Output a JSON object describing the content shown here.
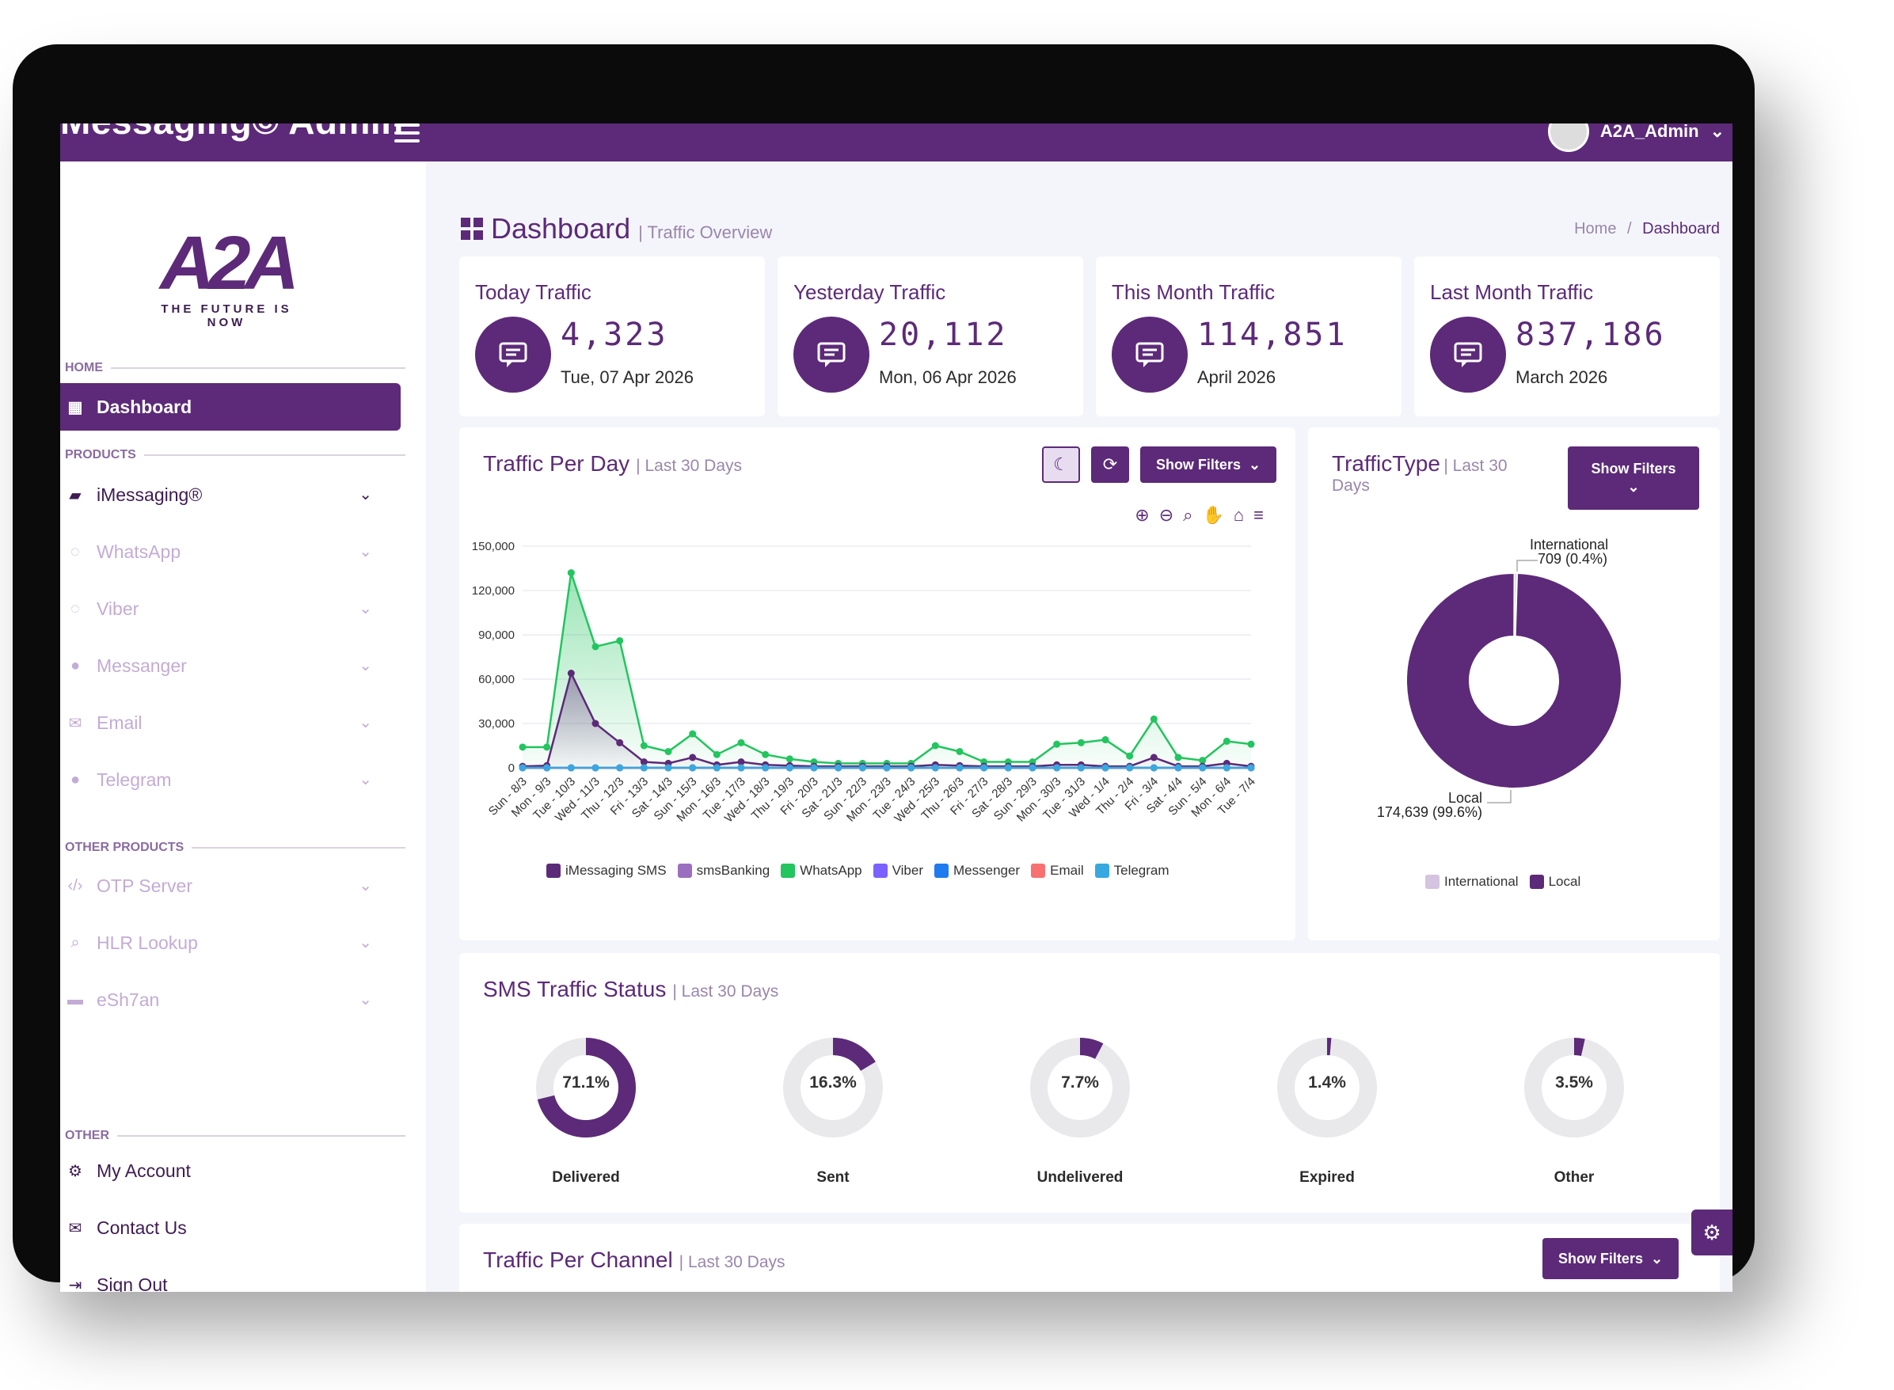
{
  "topbar": {
    "brand": "Messaging© Admin",
    "user": "A2A_Admin"
  },
  "logo": {
    "mark": "A2A",
    "tagline": "THE FUTURE IS NOW"
  },
  "sidebar": {
    "home_label": "HOME",
    "dashboard": "Dashboard",
    "products_label": "PRODUCTS",
    "products": [
      {
        "label": "iMessaging®",
        "icon": "chat-icon"
      },
      {
        "label": "WhatsApp",
        "icon": "whatsapp-icon"
      },
      {
        "label": "Viber",
        "icon": "viber-icon"
      },
      {
        "label": "Messanger",
        "icon": "messenger-icon"
      },
      {
        "label": "Email",
        "icon": "envelope-icon"
      },
      {
        "label": "Telegram",
        "icon": "telegram-icon"
      }
    ],
    "other_products_label": "OTHER PRODUCTS",
    "other_products": [
      {
        "label": "OTP Server",
        "icon": "code-icon"
      },
      {
        "label": "HLR Lookup",
        "icon": "search-icon"
      },
      {
        "label": "eSh7an",
        "icon": "card-icon"
      }
    ],
    "other_label": "OTHER",
    "other": [
      {
        "label": "My Account",
        "icon": "gear-icon"
      },
      {
        "label": "Contact Us",
        "icon": "envelope-icon"
      },
      {
        "label": "Sign Out",
        "icon": "logout-icon"
      }
    ]
  },
  "page": {
    "title": "Dashboard",
    "subtitle": "| Traffic Overview",
    "breadcrumb_home": "Home",
    "breadcrumb_sep": "/",
    "breadcrumb_current": "Dashboard"
  },
  "stats": [
    {
      "title": "Today Traffic",
      "value": "4,323",
      "sub": "Tue, 07 Apr 2026"
    },
    {
      "title": "Yesterday Traffic",
      "value": "20,112",
      "sub": "Mon, 06 Apr 2026"
    },
    {
      "title": "This Month Traffic",
      "value": "114,851",
      "sub": "April 2026"
    },
    {
      "title": "Last Month Traffic",
      "value": "837,186",
      "sub": "March 2026"
    }
  ],
  "traffic_per_day": {
    "title": "Traffic Per Day",
    "subtitle": "| Last 30 Days",
    "filters_button": "Show Filters"
  },
  "traffic_type": {
    "title": "TrafficType",
    "subtitle": "| Last 30 Days",
    "filters_button": "Show Filters",
    "label_international": "International",
    "value_international": "709 (0.4%)",
    "label_local": "Local",
    "value_local": "174,639 (99.6%)"
  },
  "sms_status": {
    "title": "SMS Traffic Status",
    "subtitle": "| Last 30 Days",
    "items": [
      {
        "label": "Delivered",
        "pct_text": "71.1%",
        "pct": 71.1
      },
      {
        "label": "Sent",
        "pct_text": "16.3%",
        "pct": 16.3
      },
      {
        "label": "Undelivered",
        "pct_text": "7.7%",
        "pct": 7.7
      },
      {
        "label": "Expired",
        "pct_text": "1.4%",
        "pct": 1.4
      },
      {
        "label": "Other",
        "pct_text": "3.5%",
        "pct": 3.5
      }
    ]
  },
  "traffic_per_channel": {
    "title": "Traffic Per Channel",
    "subtitle": "| Last 30 Days",
    "filters_button": "Show Filters"
  },
  "chart_data": [
    {
      "type": "area",
      "title": "",
      "xlabel": "",
      "ylabel": "",
      "ylim": [
        0,
        150000
      ],
      "yticks": [
        "150,000",
        "120,000",
        "90,000",
        "60,000",
        "30,000",
        "0"
      ],
      "categories": [
        "Sun - 8/3",
        "Mon - 9/3",
        "Tue - 10/3",
        "Wed - 11/3",
        "Thu - 12/3",
        "Fri - 13/3",
        "Sat - 14/3",
        "Sun - 15/3",
        "Mon - 16/3",
        "Tue - 17/3",
        "Wed - 18/3",
        "Thu - 19/3",
        "Fri - 20/3",
        "Sat - 21/3",
        "Sun - 22/3",
        "Mon - 23/3",
        "Tue - 24/3",
        "Wed - 25/3",
        "Thu - 26/3",
        "Fri - 27/3",
        "Sat - 28/3",
        "Sun - 29/3",
        "Mon - 30/3",
        "Tue - 31/3",
        "Wed - 1/4",
        "Thu - 2/4",
        "Fri - 3/4",
        "Sat - 4/4",
        "Sun - 5/4",
        "Mon - 6/4",
        "Tue - 7/4"
      ],
      "series": [
        {
          "name": "iMessaging SMS",
          "color": "#5c2a78",
          "values": [
            1000,
            1500,
            64000,
            30000,
            17000,
            4000,
            3000,
            7000,
            2000,
            4000,
            2000,
            1500,
            1000,
            1000,
            1000,
            1000,
            1000,
            2000,
            1500,
            1000,
            1000,
            1000,
            2000,
            2000,
            1000,
            1000,
            7000,
            1000,
            1000,
            3000,
            1000
          ]
        },
        {
          "name": "smsBanking",
          "color": "#9b6fc0",
          "values": [
            0,
            0,
            0,
            0,
            0,
            0,
            0,
            0,
            0,
            0,
            0,
            0,
            0,
            0,
            0,
            0,
            0,
            0,
            0,
            0,
            0,
            0,
            0,
            0,
            0,
            0,
            0,
            0,
            0,
            0,
            0
          ]
        },
        {
          "name": "WhatsApp",
          "color": "#22c55e",
          "values": [
            14000,
            14000,
            132000,
            82000,
            86000,
            15000,
            11000,
            23000,
            9000,
            17000,
            9000,
            6000,
            4000,
            3000,
            3000,
            3000,
            3000,
            15000,
            11000,
            4000,
            4000,
            4000,
            16000,
            17000,
            19000,
            8000,
            33000,
            7000,
            5000,
            18000,
            16000
          ]
        },
        {
          "name": "Viber",
          "color": "#7b61ff",
          "values": [
            0,
            0,
            0,
            0,
            0,
            0,
            0,
            0,
            0,
            0,
            0,
            0,
            0,
            0,
            0,
            0,
            0,
            0,
            0,
            0,
            0,
            0,
            0,
            0,
            0,
            0,
            0,
            0,
            0,
            0,
            0
          ]
        },
        {
          "name": "Messenger",
          "color": "#1e7bf0",
          "values": [
            0,
            0,
            0,
            0,
            0,
            0,
            0,
            0,
            0,
            0,
            0,
            0,
            0,
            0,
            0,
            0,
            0,
            0,
            0,
            0,
            0,
            0,
            0,
            0,
            0,
            0,
            0,
            0,
            0,
            0,
            0
          ]
        },
        {
          "name": "Email",
          "color": "#f87171",
          "values": [
            0,
            0,
            0,
            0,
            0,
            0,
            0,
            0,
            0,
            0,
            0,
            0,
            0,
            0,
            0,
            0,
            0,
            0,
            0,
            0,
            0,
            0,
            0,
            0,
            0,
            0,
            0,
            0,
            0,
            0,
            0
          ]
        },
        {
          "name": "Telegram",
          "color": "#38a8e0",
          "values": [
            0,
            0,
            0,
            0,
            0,
            0,
            0,
            0,
            0,
            0,
            0,
            0,
            0,
            0,
            0,
            0,
            0,
            0,
            0,
            0,
            0,
            0,
            0,
            0,
            0,
            0,
            0,
            0,
            0,
            0,
            0
          ]
        }
      ],
      "legend_position": "bottom"
    },
    {
      "type": "pie",
      "title": "",
      "slices": [
        {
          "name": "International",
          "value": 709,
          "pct": 0.4,
          "color": "#d4c4df"
        },
        {
          "name": "Local",
          "value": 174639,
          "pct": 99.6,
          "color": "#5c2a78"
        }
      ],
      "legend_position": "bottom"
    }
  ],
  "colors": {
    "primary": "#5c2a78",
    "muted": "#c3acd4",
    "whatsapp": "#22c55e"
  }
}
